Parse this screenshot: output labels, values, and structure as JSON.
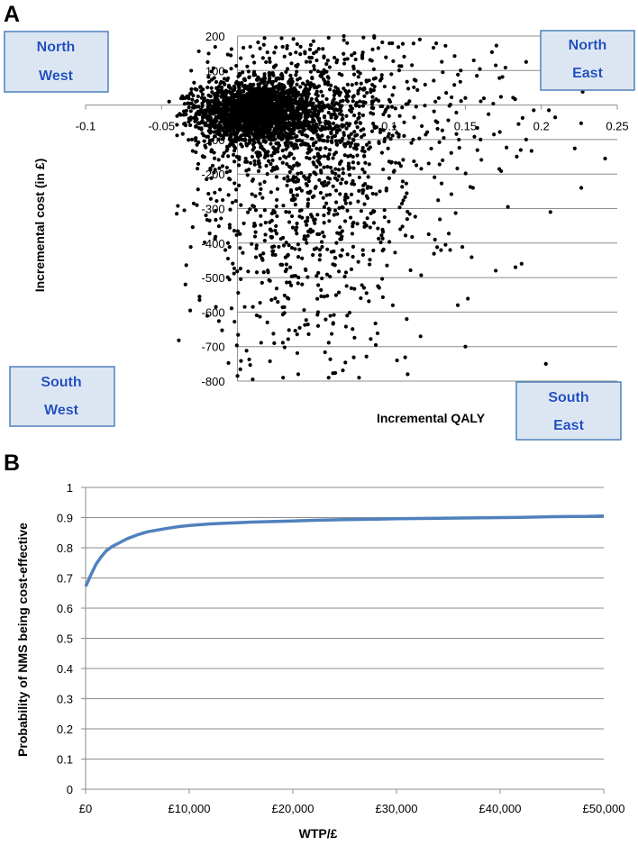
{
  "chart_data": [
    {
      "panel_label": "A",
      "type": "scatter",
      "title": "",
      "xlabel": "Incremental QALY",
      "ylabel": "Incremental cost (in £)",
      "xlim": [
        -0.1,
        0.25
      ],
      "ylim": [
        -800,
        200
      ],
      "x_ticks": [
        "-0.1",
        "-0.05",
        "0",
        "0.05",
        "0.1",
        "0.15",
        "0.2",
        "0.25"
      ],
      "y_ticks": [
        "-800",
        "-700",
        "-600",
        "-500",
        "-400",
        "-300",
        "-200",
        "-100",
        "0",
        "100",
        "200"
      ],
      "grid": "horizontal",
      "series": [
        {
          "points": [
            [
              0.19,
              125
            ],
            [
              0.17,
              115
            ],
            [
              0.195,
              -15
            ],
            [
              0.205,
              -15
            ],
            [
              0.185,
              -55
            ],
            [
              0.19,
              -100
            ],
            [
              0.242,
              -155
            ],
            [
              0.178,
              -295
            ],
            [
              0.206,
              -310
            ],
            [
              0.183,
              -470
            ],
            [
              0.187,
              -460
            ],
            [
              0.17,
              -480
            ],
            [
              0.203,
              -750
            ],
            [
              0.105,
              -740
            ],
            [
              0.112,
              -780
            ],
            [
              0.04,
              -780
            ],
            [
              0.0,
              -785
            ],
            [
              0.01,
              -795
            ],
            [
              -0.045,
              10
            ],
            [
              -0.03,
              -100
            ],
            [
              -0.035,
              -305
            ],
            [
              -0.04,
              -315
            ],
            [
              -0.025,
              -555
            ],
            [
              -0.025,
              -565
            ],
            [
              -0.008,
              -420
            ],
            [
              0.135,
              -160
            ],
            [
              0.13,
              -390
            ],
            [
              0.14,
              -420
            ],
            [
              0.145,
              -580
            ],
            [
              0.15,
              -700
            ],
            [
              0.16,
              -100
            ],
            [
              0.155,
              -240
            ],
            [
              0.12,
              190
            ],
            [
              0.09,
              195
            ],
            [
              0.07,
              200
            ],
            [
              0.06,
              195
            ],
            [
              0.05,
              185
            ],
            [
              0.08,
              -790
            ],
            [
              0.06,
              -790
            ],
            [
              0.03,
              -790
            ]
          ],
          "clusters": [
            {
              "center": [
                0.01,
                -20
              ],
              "spread": [
                0.018,
                40
              ],
              "count": 1500
            },
            {
              "center": [
                0.03,
                -30
              ],
              "spread": [
                0.03,
                70
              ],
              "count": 700
            },
            {
              "center": [
                0.045,
                -230
              ],
              "spread": [
                0.042,
                250
              ],
              "count": 1000
            },
            {
              "center": [
                0.07,
                10
              ],
              "spread": [
                0.06,
                120
              ],
              "count": 300
            }
          ]
        }
      ],
      "quadrants": [
        {
          "id": "north-west",
          "line1": "North",
          "line2": "West"
        },
        {
          "id": "north-east",
          "line1": "North",
          "line2": "East"
        },
        {
          "id": "south-west",
          "line1": "South",
          "line2": "West"
        },
        {
          "id": "south-east",
          "line1": "South",
          "line2": "East"
        }
      ]
    },
    {
      "panel_label": "B",
      "type": "line",
      "title": "",
      "xlabel": "WTP/£",
      "ylabel": "Probability of NMS being cost-effective",
      "xlim": [
        0,
        50000
      ],
      "ylim": [
        0,
        1
      ],
      "x_ticks": [
        "£0",
        "£10,000",
        "£20,000",
        "£30,000",
        "£40,000",
        "£50,000"
      ],
      "y_ticks": [
        "0",
        "0.1",
        "0.2",
        "0.3",
        "0.4",
        "0.5",
        "0.6",
        "0.7",
        "0.8",
        "0.9",
        "1"
      ],
      "grid": "horizontal",
      "color": "#4f81bd",
      "x": [
        0,
        250,
        500,
        1000,
        1500,
        2000,
        2500,
        3000,
        4000,
        5000,
        6000,
        7000,
        8000,
        9000,
        10000,
        12000,
        14000,
        16000,
        18000,
        20000,
        22000,
        25000,
        28000,
        30000,
        34000,
        38000,
        40000,
        42000,
        45000,
        48000,
        50000
      ],
      "y": [
        0.672,
        0.69,
        0.71,
        0.745,
        0.77,
        0.79,
        0.803,
        0.812,
        0.83,
        0.843,
        0.853,
        0.859,
        0.865,
        0.87,
        0.874,
        0.879,
        0.882,
        0.885,
        0.887,
        0.889,
        0.891,
        0.893,
        0.895,
        0.896,
        0.898,
        0.899,
        0.9,
        0.901,
        0.903,
        0.904,
        0.905
      ]
    }
  ]
}
